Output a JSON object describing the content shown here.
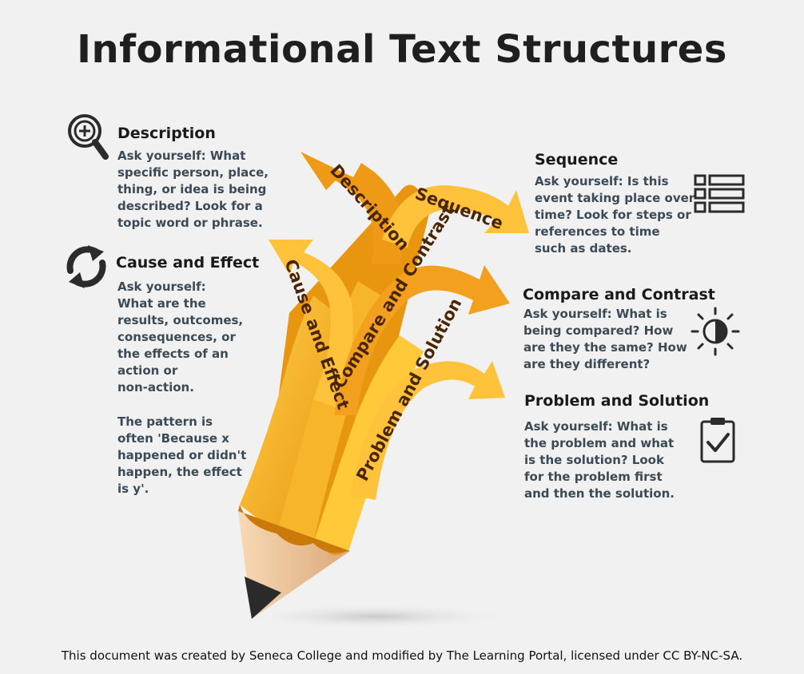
{
  "title": "Informational Text Structures",
  "sections": {
    "description": {
      "heading": "Description",
      "lines": [
        "Ask yourself: What",
        "specific person, place,",
        "thing, or idea is being",
        "described? Look for a",
        "topic word or phrase."
      ],
      "icon": "magnifier-plus-icon"
    },
    "cause_effect": {
      "heading": "Cause and Effect",
      "lines": [
        "Ask yourself:",
        "What are the",
        "results, outcomes,",
        "consequences, or",
        "the effects of an",
        "action or",
        "non-action."
      ],
      "pattern_lines": [
        "The pattern is",
        "often 'Because x",
        "happened or didn't",
        "happen, the effect",
        "is y'."
      ],
      "icon": "cycle-arrows-icon"
    },
    "sequence": {
      "heading": "Sequence",
      "lines": [
        "Ask yourself: Is this",
        "event taking place over",
        "time? Look for steps or",
        "references to time",
        "such as dates."
      ],
      "icon": "list-icon"
    },
    "compare_contrast": {
      "heading": "Compare and Contrast",
      "lines": [
        "Ask yourself: What is",
        "being compared? How",
        "are they the same? How",
        "are they different?"
      ],
      "icon": "half-sun-icon"
    },
    "problem_solution": {
      "heading": "Problem and Solution",
      "lines": [
        "Ask yourself: What is",
        "the problem and what",
        "is the solution? Look",
        "for the problem first",
        "and then the solution."
      ],
      "icon": "clipboard-check-icon"
    }
  },
  "arrow_labels": {
    "description": "Description",
    "sequence": "Sequence",
    "cause_effect": "Cause and Effect",
    "compare_contrast": "Compare and Contrast",
    "problem_solution": "Problem and Solution"
  },
  "colors": {
    "arrow_orange": "#f2a01e",
    "arrow_yellow": "#ffc93a",
    "body_text": "#3b4a55",
    "background": "#f1f1f1"
  },
  "footer": "This document was created by Seneca College and modified by The Learning Portal,  licensed under CC BY-NC-SA."
}
